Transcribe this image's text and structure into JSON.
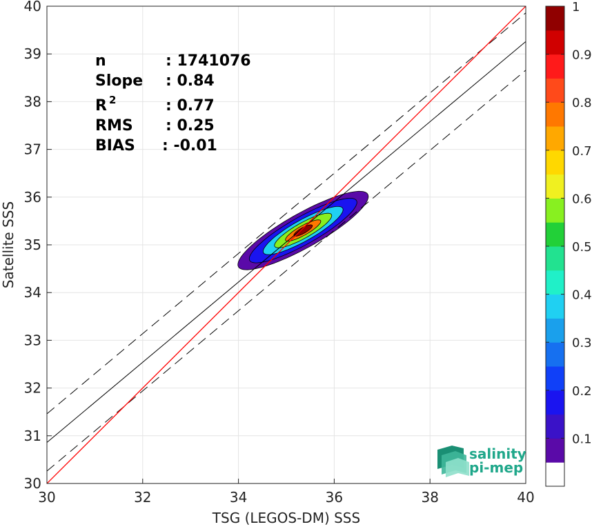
{
  "chart_data": {
    "type": "heatmap",
    "subtype": "density-scatter",
    "xlabel": "TSG (LEGOS-DM) SSS",
    "ylabel": "Satellite SSS",
    "xlim": [
      30,
      40
    ],
    "ylim": [
      30,
      40
    ],
    "xticks": [
      "30",
      "32",
      "34",
      "36",
      "38",
      "40"
    ],
    "yticks": [
      "30",
      "31",
      "32",
      "33",
      "34",
      "35",
      "36",
      "37",
      "38",
      "39",
      "40"
    ],
    "grid": true,
    "stats": [
      {
        "label": "n",
        "value": ": 1741076"
      },
      {
        "label": "Slope",
        "value": ": 0.84"
      },
      {
        "label": "R",
        "sup": "2",
        "value": ": 0.77"
      },
      {
        "label": "RMS",
        "value": ": 0.25"
      },
      {
        "label": "BIAS",
        "value": ": -0.01"
      }
    ],
    "lines": {
      "identity": {
        "intercept": 0,
        "slope": 1,
        "color": "#ff0000"
      },
      "regression": {
        "intercept": 5.66,
        "slope": 0.84,
        "color": "#000000"
      },
      "regression_band": {
        "offset": 0.6,
        "style": "dashed"
      }
    },
    "density": {
      "center": [
        35.35,
        35.3
      ],
      "major_axis_direction": [
        0.87,
        0.49
      ],
      "contours": [
        {
          "level": 0.05,
          "semi_major": 1.55,
          "semi_minor": 0.36
        },
        {
          "level": 0.15,
          "semi_major": 1.28,
          "semi_minor": 0.29
        },
        {
          "level": 0.35,
          "semi_major": 0.95,
          "semi_minor": 0.22
        },
        {
          "level": 0.55,
          "semi_major": 0.68,
          "semi_minor": 0.16
        },
        {
          "level": 0.75,
          "semi_major": 0.42,
          "semi_minor": 0.1
        },
        {
          "level": 0.95,
          "semi_major": 0.22,
          "semi_minor": 0.06
        }
      ]
    },
    "colorbar": {
      "ticks": [
        "0.1",
        "0.2",
        "0.3",
        "0.4",
        "0.5",
        "0.6",
        "0.7",
        "0.8",
        "0.9",
        "1"
      ],
      "range": [
        0,
        1
      ],
      "bins": [
        0,
        0.05,
        0.1,
        0.15,
        0.2,
        0.25,
        0.3,
        0.35,
        0.4,
        0.45,
        0.5,
        0.55,
        0.6,
        0.65,
        0.7,
        0.75,
        0.8,
        0.85,
        0.9,
        0.95,
        1
      ],
      "colors": [
        "#ffffff",
        "#5a0aa8",
        "#3a12c8",
        "#1a14f0",
        "#1040f8",
        "#1670f0",
        "#1aa0ec",
        "#20d0f2",
        "#20f0c8",
        "#22e290",
        "#22d038",
        "#88f020",
        "#f0f020",
        "#ffd800",
        "#ffa800",
        "#ff7800",
        "#ff4a1a",
        "#ff1a1a",
        "#d00000",
        "#900000"
      ]
    }
  },
  "logo": {
    "line1": "salinity",
    "line2": "pi-mep",
    "color": "#1fa78a"
  }
}
